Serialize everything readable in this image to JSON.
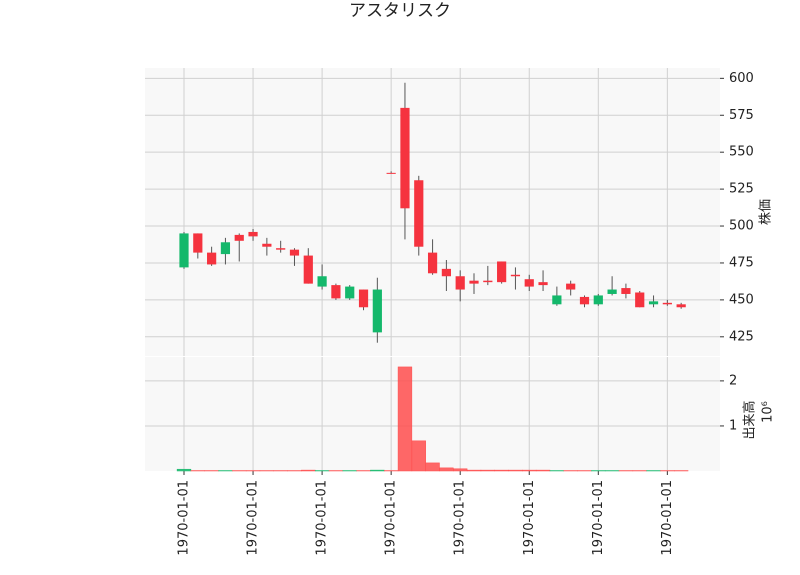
{
  "chart_data": [
    {
      "type": "candlestick",
      "title": "アスタリスク",
      "ylabel": "株価",
      "open": [
        472,
        495,
        482,
        481,
        494,
        496,
        488,
        485,
        484,
        480,
        459,
        460,
        451,
        457,
        428,
        536,
        580,
        531,
        482,
        471,
        466,
        463,
        463,
        476,
        467,
        464,
        462,
        447,
        461,
        452,
        447,
        454,
        458,
        455,
        447,
        448,
        447
      ],
      "high": [
        496,
        495,
        486,
        492,
        495,
        498,
        492,
        490,
        485,
        485,
        474,
        461,
        460,
        457,
        465,
        537,
        597,
        534,
        491,
        477,
        470,
        468,
        473,
        476,
        472,
        467,
        470,
        459,
        463,
        453,
        454,
        466,
        461,
        456,
        453,
        450,
        448
      ],
      "low": [
        471,
        478,
        473,
        474,
        476,
        490,
        480,
        482,
        473,
        461,
        457,
        450,
        450,
        443,
        421,
        536,
        491,
        480,
        467,
        456,
        449,
        454,
        460,
        461,
        457,
        456,
        456,
        446,
        453,
        445,
        446,
        453,
        451,
        445,
        445,
        446,
        444
      ],
      "close": [
        495,
        482,
        474,
        489,
        490,
        493,
        486,
        484,
        480,
        461,
        466,
        451,
        459,
        445,
        457,
        536,
        512,
        486,
        468,
        466,
        457,
        461,
        462,
        462,
        466,
        459,
        460,
        453,
        457,
        447,
        453,
        457,
        454,
        445,
        449,
        447,
        445
      ],
      "ylim": [
        412,
        607
      ],
      "yticks": [
        425,
        450,
        475,
        500,
        525,
        550,
        575,
        600
      ],
      "grid": true,
      "up_color": "#14b86b",
      "down_color": "#f5333f"
    },
    {
      "type": "bar",
      "ylabel": "出来高",
      "offset_label": "10⁶",
      "categories": [
        "1970-01-01",
        null,
        null,
        null,
        null,
        "1970-01-01",
        null,
        null,
        null,
        null,
        "1970-01-01",
        null,
        null,
        null,
        null,
        "1970-01-01",
        null,
        null,
        null,
        null,
        "1970-01-01",
        null,
        null,
        null,
        null,
        "1970-01-01",
        null,
        null,
        null,
        null,
        "1970-01-01",
        null,
        null,
        null,
        null,
        "1970-01-01",
        null
      ],
      "values": [
        0.04,
        0.01,
        0.01,
        0.01,
        0.01,
        0.01,
        0.01,
        0.01,
        0.01,
        0.02,
        0.01,
        0.01,
        0.01,
        0.01,
        0.02,
        0.01,
        2.31,
        0.67,
        0.18,
        0.07,
        0.05,
        0.02,
        0.02,
        0.02,
        0.02,
        0.02,
        0.02,
        0.01,
        0.01,
        0.01,
        0.01,
        0.01,
        0.01,
        0.01,
        0.01,
        0.01,
        0.01
      ],
      "ylim": [
        0,
        2.53
      ],
      "yticks": [
        1,
        2
      ],
      "grid": true,
      "up_color": "#14b86b",
      "down_color": "#ff4d4d"
    }
  ]
}
